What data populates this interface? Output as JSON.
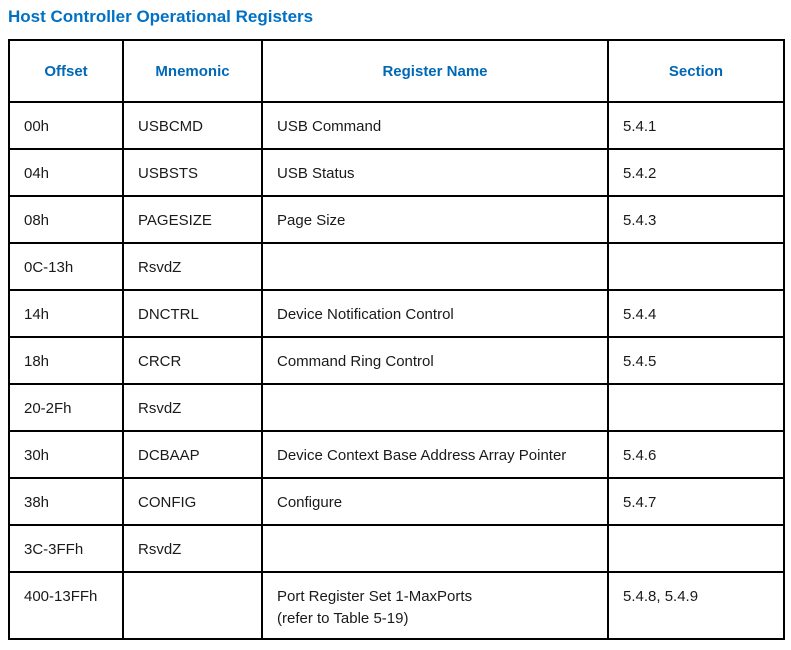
{
  "title": "Host Controller Operational Registers",
  "colors": {
    "title": "#0071C5",
    "header_text": "#0068B5",
    "border": "#000000",
    "body_text": "#1a1a1a",
    "background": "#ffffff"
  },
  "table": {
    "headers": [
      "Offset",
      "Mnemonic",
      "Register Name",
      "Section"
    ],
    "rows": [
      {
        "offset": "00h",
        "mnemonic": "USBCMD",
        "register_name": "USB Command",
        "section": "5.4.1"
      },
      {
        "offset": "04h",
        "mnemonic": "USBSTS",
        "register_name": "USB Status",
        "section": "5.4.2"
      },
      {
        "offset": "08h",
        "mnemonic": "PAGESIZE",
        "register_name": "Page Size",
        "section": "5.4.3"
      },
      {
        "offset": "0C-13h",
        "mnemonic": "RsvdZ",
        "register_name": "",
        "section": ""
      },
      {
        "offset": "14h",
        "mnemonic": "DNCTRL",
        "register_name": "Device Notification Control",
        "section": "5.4.4"
      },
      {
        "offset": "18h",
        "mnemonic": "CRCR",
        "register_name": "Command Ring Control",
        "section": "5.4.5"
      },
      {
        "offset": "20-2Fh",
        "mnemonic": "RsvdZ",
        "register_name": "",
        "section": ""
      },
      {
        "offset": "30h",
        "mnemonic": "DCBAAP",
        "register_name": "Device Context Base Address Array Pointer",
        "section": "5.4.6"
      },
      {
        "offset": "38h",
        "mnemonic": "CONFIG",
        "register_name": "Configure",
        "section": "5.4.7"
      },
      {
        "offset": "3C-3FFh",
        "mnemonic": "RsvdZ",
        "register_name": "",
        "section": ""
      },
      {
        "offset": "400-13FFh",
        "mnemonic": "",
        "register_name": "Port Register Set 1-MaxPorts\n(refer to Table 5-19)",
        "section": "5.4.8, 5.4.9"
      }
    ]
  }
}
